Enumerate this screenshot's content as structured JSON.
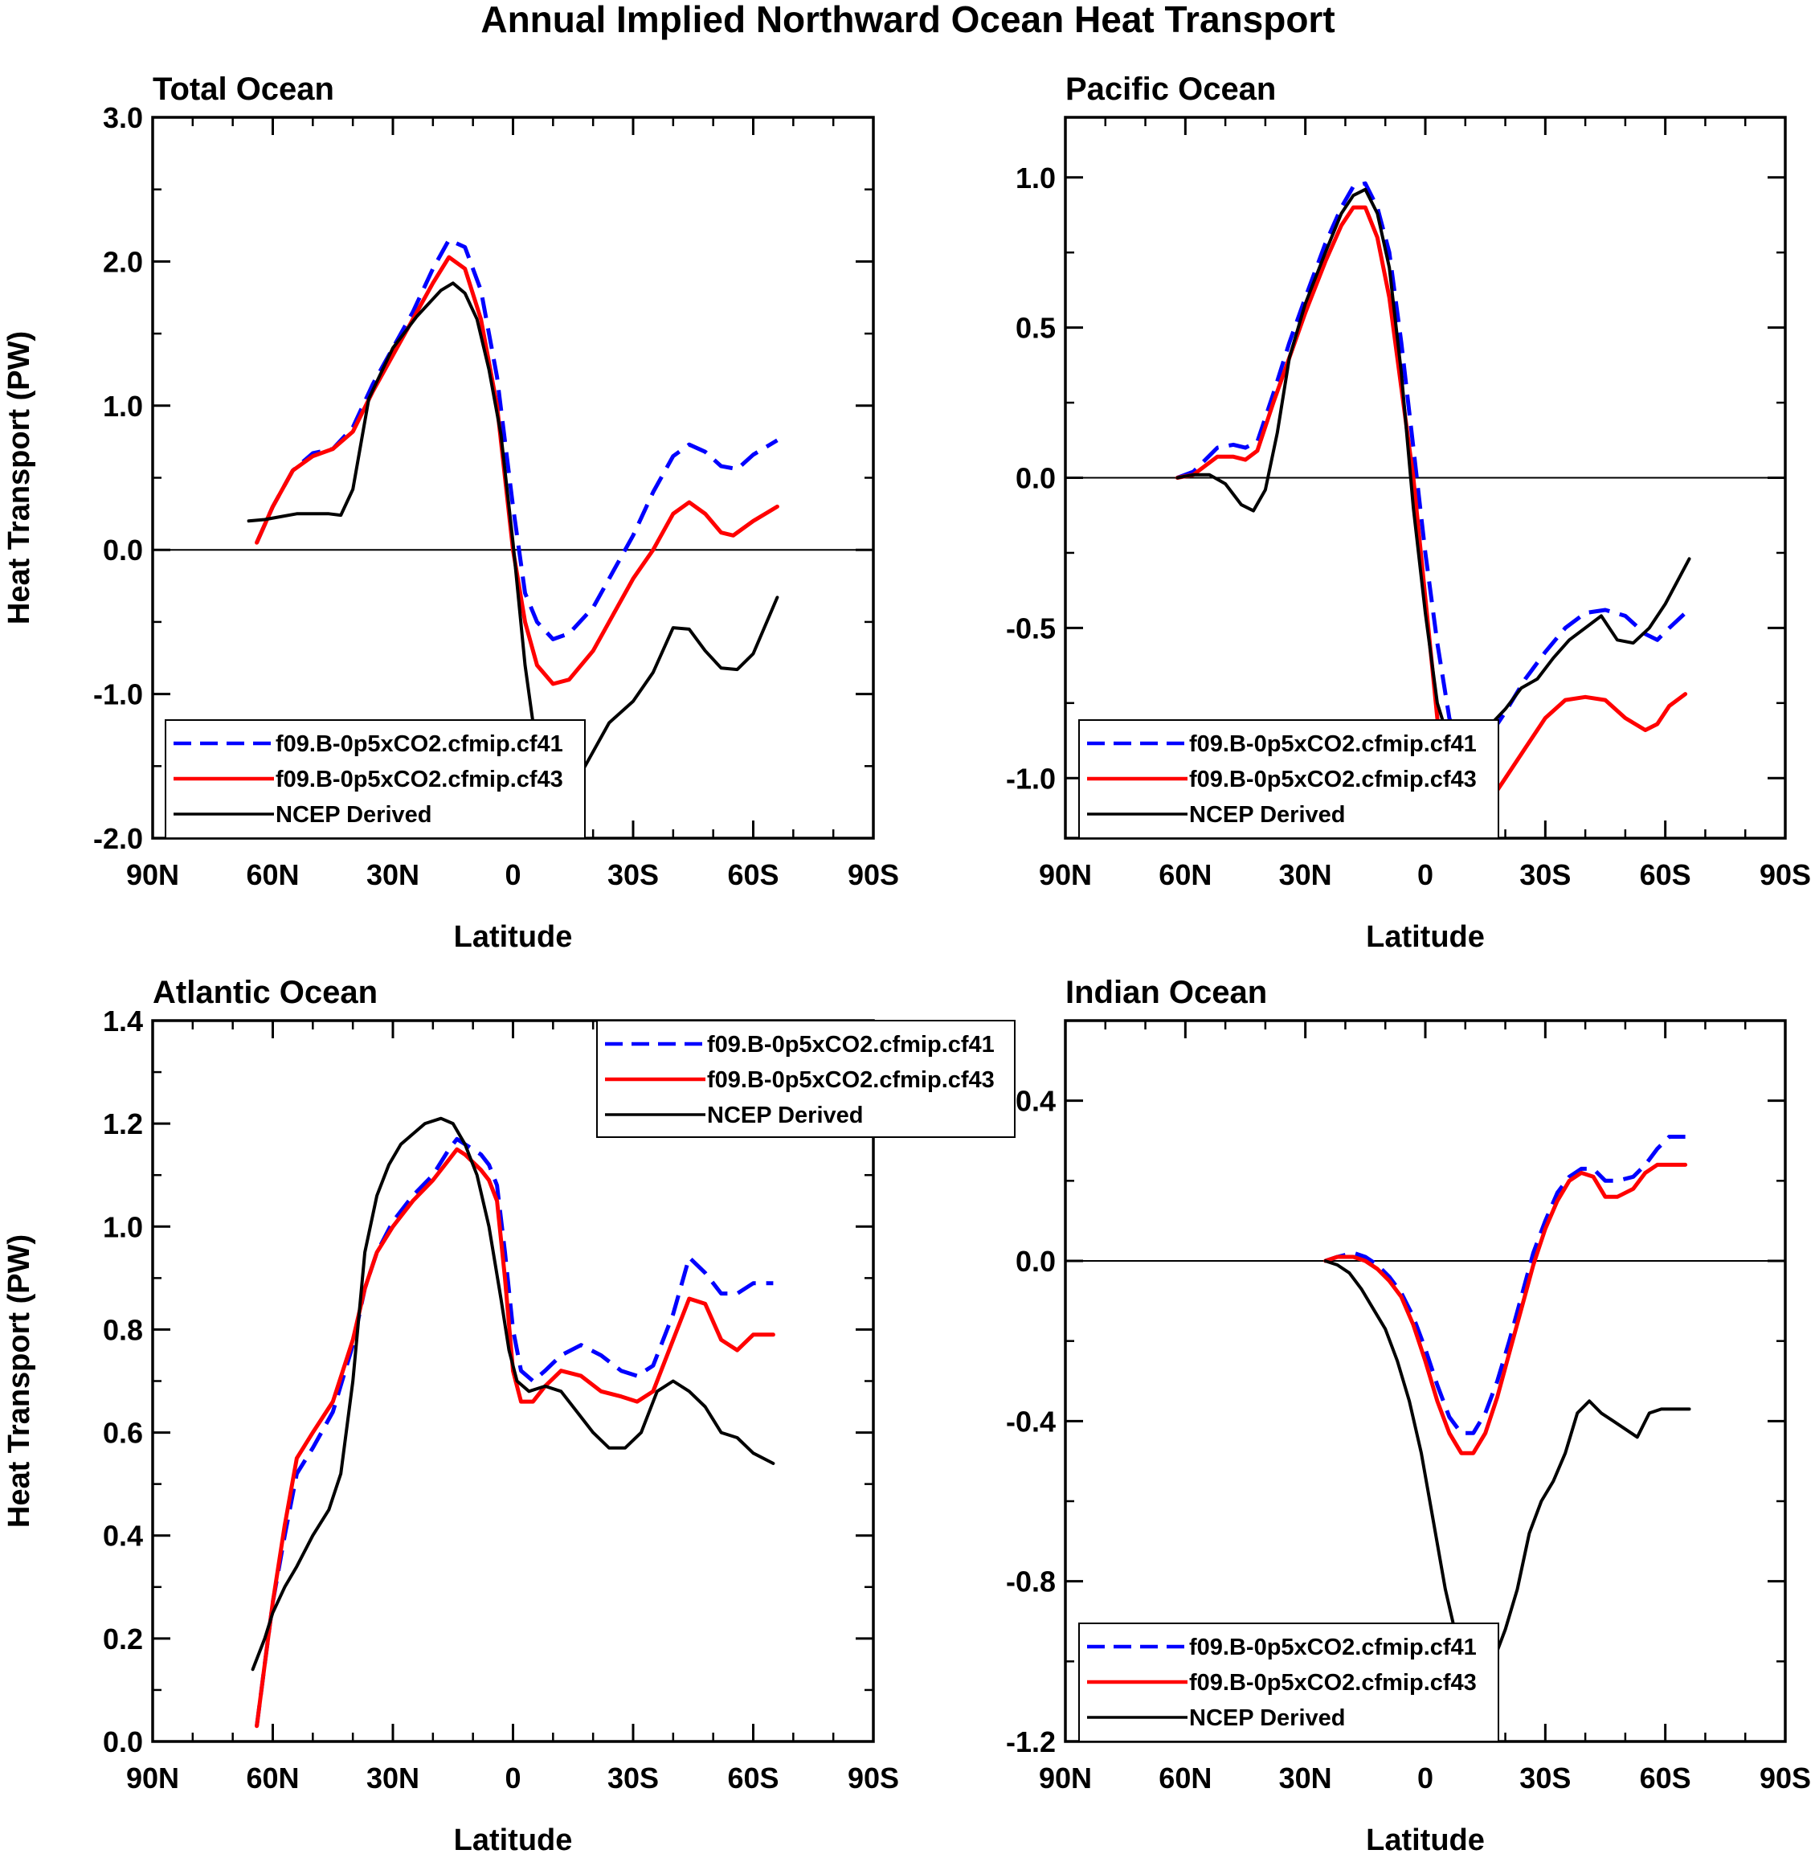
{
  "title": "Annual Implied Northward Ocean Heat Transport",
  "series_styles": [
    {
      "name": "f09.B-0p5xCO2.cfmip.cf41",
      "color": "#0000ff",
      "dash": "dashed"
    },
    {
      "name": "f09.B-0p5xCO2.cfmip.cf43",
      "color": "#ff0000",
      "dash": "solid"
    },
    {
      "name": "NCEP Derived",
      "color": "#000000",
      "dash": "solid"
    }
  ],
  "chart_data": [
    {
      "type": "line",
      "title": "Total Ocean",
      "xlabel": "Latitude",
      "ylabel": "Heat Transport (PW)",
      "xlim": [
        90,
        -90
      ],
      "ylim": [
        -2.0,
        3.0
      ],
      "xticks": [
        90,
        60,
        30,
        0,
        -30,
        -60,
        -90
      ],
      "xtick_labels": [
        "90N",
        "60N",
        "30N",
        "0",
        "30S",
        "60S",
        "90S"
      ],
      "yticks": [
        -2.0,
        -1.0,
        0.0,
        1.0,
        2.0,
        3.0
      ],
      "ytick_labels": [
        "-2.0",
        "-1.0",
        "0.0",
        "1.0",
        "2.0",
        "3.0"
      ],
      "zero_line": true,
      "legend_position": "bottom-left",
      "series": [
        {
          "name": "f09.B-0p5xCO2.cfmip.cf41",
          "x": [
            64,
            60,
            55,
            50,
            45,
            40,
            35,
            30,
            25,
            20,
            16,
            12,
            8,
            4,
            0,
            -3,
            -6,
            -10,
            -14,
            -20,
            -25,
            -30,
            -35,
            -40,
            -44,
            -48,
            -52,
            -56,
            -60,
            -66
          ],
          "y": [
            0.05,
            0.3,
            0.55,
            0.67,
            0.7,
            0.85,
            1.15,
            1.4,
            1.65,
            1.95,
            2.15,
            2.1,
            1.8,
            1.2,
            0.3,
            -0.3,
            -0.5,
            -0.62,
            -0.58,
            -0.4,
            -0.15,
            0.1,
            0.4,
            0.65,
            0.73,
            0.68,
            0.58,
            0.56,
            0.66,
            0.76
          ]
        },
        {
          "name": "f09.B-0p5xCO2.cfmip.cf43",
          "x": [
            64,
            60,
            55,
            50,
            45,
            40,
            35,
            30,
            25,
            20,
            16,
            12,
            8,
            4,
            0,
            -3,
            -6,
            -10,
            -14,
            -20,
            -25,
            -30,
            -35,
            -40,
            -44,
            -48,
            -52,
            -55,
            -60,
            -66
          ],
          "y": [
            0.05,
            0.3,
            0.55,
            0.65,
            0.7,
            0.82,
            1.1,
            1.35,
            1.6,
            1.85,
            2.03,
            1.95,
            1.6,
            1.0,
            0.0,
            -0.5,
            -0.8,
            -0.93,
            -0.9,
            -0.7,
            -0.45,
            -0.2,
            0.0,
            0.25,
            0.33,
            0.25,
            0.12,
            0.1,
            0.2,
            0.3
          ]
        },
        {
          "name": "NCEP Derived",
          "x": [
            66,
            62,
            58,
            54,
            50,
            46,
            43,
            40,
            36,
            30,
            24,
            18,
            15,
            12,
            9,
            6,
            3,
            0,
            -3,
            -6,
            -10,
            -14,
            -18,
            -24,
            -30,
            -35,
            -40,
            -44,
            -48,
            -52,
            -56,
            -60,
            -66
          ],
          "y": [
            0.2,
            0.21,
            0.23,
            0.25,
            0.25,
            0.25,
            0.24,
            0.42,
            1.05,
            1.4,
            1.62,
            1.8,
            1.85,
            1.78,
            1.6,
            1.25,
            0.8,
            0.05,
            -0.8,
            -1.4,
            -1.65,
            -1.67,
            -1.5,
            -1.2,
            -1.05,
            -0.85,
            -0.54,
            -0.55,
            -0.7,
            -0.82,
            -0.83,
            -0.72,
            -0.33
          ]
        }
      ]
    },
    {
      "type": "line",
      "title": "Pacific Ocean",
      "xlabel": "Latitude",
      "ylabel": "",
      "xlim": [
        90,
        -90
      ],
      "ylim": [
        -1.2,
        1.2
      ],
      "xticks": [
        90,
        60,
        30,
        0,
        -30,
        -60,
        -90
      ],
      "xtick_labels": [
        "90N",
        "60N",
        "30N",
        "0",
        "30S",
        "60S",
        "90S"
      ],
      "yticks": [
        -1.0,
        -0.5,
        0.0,
        0.5,
        1.0
      ],
      "ytick_labels": [
        "-1.0",
        "-0.5",
        "0.0",
        "0.5",
        "1.0"
      ],
      "zero_line": true,
      "legend_position": "bottom-left",
      "series": [
        {
          "name": "f09.B-0p5xCO2.cfmip.cf41",
          "x": [
            62,
            58,
            55,
            52,
            48,
            45,
            42,
            38,
            34,
            30,
            25,
            21,
            18,
            15,
            12,
            9,
            6,
            3,
            0,
            -3,
            -6,
            -9,
            -12,
            -15,
            -20,
            -25,
            -30,
            -35,
            -40,
            -45,
            -50,
            -55,
            -58,
            -61,
            -65
          ],
          "y": [
            0.0,
            0.02,
            0.06,
            0.1,
            0.11,
            0.1,
            0.12,
            0.28,
            0.45,
            0.6,
            0.78,
            0.9,
            0.97,
            0.98,
            0.9,
            0.75,
            0.45,
            0.1,
            -0.25,
            -0.55,
            -0.8,
            -0.92,
            -0.93,
            -0.88,
            -0.78,
            -0.67,
            -0.58,
            -0.5,
            -0.45,
            -0.44,
            -0.46,
            -0.52,
            -0.54,
            -0.5,
            -0.45
          ]
        },
        {
          "name": "f09.B-0p5xCO2.cfmip.cf43",
          "x": [
            62,
            58,
            55,
            52,
            48,
            45,
            42,
            38,
            34,
            30,
            25,
            21,
            18,
            15,
            12,
            9,
            6,
            3,
            0,
            -3,
            -6,
            -9,
            -12,
            -15,
            -20,
            -25,
            -30,
            -35,
            -40,
            -45,
            -50,
            -55,
            -58,
            -61,
            -65
          ],
          "y": [
            0.0,
            0.01,
            0.04,
            0.07,
            0.07,
            0.06,
            0.09,
            0.25,
            0.4,
            0.55,
            0.72,
            0.84,
            0.9,
            0.9,
            0.8,
            0.6,
            0.3,
            0.0,
            -0.4,
            -0.8,
            -1.05,
            -1.12,
            -1.13,
            -1.1,
            -1.0,
            -0.9,
            -0.8,
            -0.74,
            -0.73,
            -0.74,
            -0.8,
            -0.84,
            -0.82,
            -0.76,
            -0.72
          ]
        },
        {
          "name": "NCEP Derived",
          "x": [
            62,
            58,
            54,
            50,
            46,
            43,
            40,
            37,
            34,
            30,
            25,
            21,
            18,
            15,
            12,
            9,
            6,
            3,
            0,
            -3,
            -6,
            -9,
            -12,
            -15,
            -20,
            -24,
            -28,
            -32,
            -36,
            -40,
            -44,
            -48,
            -52,
            -56,
            -60,
            -66
          ],
          "y": [
            0.0,
            0.01,
            0.01,
            -0.02,
            -0.09,
            -0.11,
            -0.04,
            0.15,
            0.4,
            0.58,
            0.75,
            0.88,
            0.94,
            0.96,
            0.88,
            0.7,
            0.35,
            -0.1,
            -0.45,
            -0.75,
            -0.88,
            -0.9,
            -0.88,
            -0.84,
            -0.77,
            -0.7,
            -0.67,
            -0.6,
            -0.54,
            -0.5,
            -0.46,
            -0.54,
            -0.55,
            -0.5,
            -0.42,
            -0.27
          ]
        }
      ]
    },
    {
      "type": "line",
      "title": "Atlantic Ocean",
      "xlabel": "Latitude",
      "ylabel": "Heat Transport (PW)",
      "xlim": [
        90,
        -90
      ],
      "ylim": [
        0.0,
        1.4
      ],
      "xticks": [
        90,
        60,
        30,
        0,
        -30,
        -60,
        -90
      ],
      "xtick_labels": [
        "90N",
        "60N",
        "30N",
        "0",
        "30S",
        "60S",
        "90S"
      ],
      "yticks": [
        0.0,
        0.2,
        0.4,
        0.6,
        0.8,
        1.0,
        1.2,
        1.4
      ],
      "ytick_labels": [
        "0.0",
        "0.2",
        "0.4",
        "0.6",
        "0.8",
        "1.0",
        "1.2",
        "1.4"
      ],
      "zero_line": false,
      "legend_position": "top-right",
      "series": [
        {
          "name": "f09.B-0p5xCO2.cfmip.cf41",
          "x": [
            64,
            62,
            60,
            57,
            54,
            50,
            45,
            40,
            37,
            34,
            30,
            25,
            20,
            16,
            14,
            12,
            8,
            6,
            4,
            2,
            0,
            -2,
            -5,
            -8,
            -12,
            -17,
            -22,
            -27,
            -31,
            -35,
            -40,
            -44,
            -48,
            -52,
            -56,
            -60,
            -65
          ],
          "y": [
            0.03,
            0.15,
            0.27,
            0.4,
            0.52,
            0.57,
            0.64,
            0.77,
            0.88,
            0.95,
            1.01,
            1.06,
            1.1,
            1.15,
            1.17,
            1.16,
            1.14,
            1.12,
            1.08,
            0.95,
            0.8,
            0.72,
            0.7,
            0.72,
            0.75,
            0.77,
            0.75,
            0.72,
            0.71,
            0.73,
            0.83,
            0.94,
            0.91,
            0.87,
            0.87,
            0.89,
            0.89
          ]
        },
        {
          "name": "f09.B-0p5xCO2.cfmip.cf43",
          "x": [
            64,
            62,
            60,
            57,
            54,
            50,
            45,
            40,
            37,
            34,
            30,
            25,
            20,
            16,
            14,
            12,
            8,
            6,
            4,
            2,
            0,
            -2,
            -5,
            -8,
            -12,
            -17,
            -22,
            -27,
            -31,
            -35,
            -40,
            -44,
            -48,
            -52,
            -56,
            -60,
            -65
          ],
          "y": [
            0.03,
            0.15,
            0.27,
            0.42,
            0.55,
            0.6,
            0.66,
            0.78,
            0.88,
            0.95,
            1.0,
            1.05,
            1.09,
            1.13,
            1.15,
            1.14,
            1.11,
            1.09,
            1.05,
            0.9,
            0.72,
            0.66,
            0.66,
            0.69,
            0.72,
            0.71,
            0.68,
            0.67,
            0.66,
            0.68,
            0.78,
            0.86,
            0.85,
            0.78,
            0.76,
            0.79,
            0.79
          ]
        },
        {
          "name": "NCEP Derived",
          "x": [
            65,
            62,
            60,
            57,
            54,
            50,
            46,
            43,
            40,
            37,
            34,
            31,
            28,
            25,
            22,
            18,
            15,
            12,
            9,
            6,
            3,
            1,
            -1,
            -4,
            -8,
            -12,
            -16,
            -20,
            -24,
            -28,
            -32,
            -36,
            -40,
            -44,
            -48,
            -52,
            -56,
            -60,
            -65
          ],
          "y": [
            0.14,
            0.2,
            0.25,
            0.3,
            0.34,
            0.4,
            0.45,
            0.52,
            0.7,
            0.95,
            1.06,
            1.12,
            1.16,
            1.18,
            1.2,
            1.21,
            1.2,
            1.16,
            1.1,
            1.0,
            0.86,
            0.76,
            0.7,
            0.68,
            0.69,
            0.68,
            0.64,
            0.6,
            0.57,
            0.57,
            0.6,
            0.68,
            0.7,
            0.68,
            0.65,
            0.6,
            0.59,
            0.56,
            0.54
          ]
        }
      ]
    },
    {
      "type": "line",
      "title": "Indian Ocean",
      "xlabel": "Latitude",
      "ylabel": "",
      "xlim": [
        90,
        -90
      ],
      "ylim": [
        -1.2,
        0.6
      ],
      "xticks": [
        90,
        60,
        30,
        0,
        -30,
        -60,
        -90
      ],
      "xtick_labels": [
        "90N",
        "60N",
        "30N",
        "0",
        "30S",
        "60S",
        "90S"
      ],
      "yticks": [
        -1.2,
        -0.8,
        -0.4,
        0.0,
        0.4
      ],
      "ytick_labels": [
        "-1.2",
        "-0.8",
        "-0.4",
        "0.0",
        "0.4"
      ],
      "zero_line": true,
      "legend_position": "bottom-left",
      "series": [
        {
          "name": "f09.B-0p5xCO2.cfmip.cf41",
          "x": [
            25,
            22,
            18,
            15,
            12,
            9,
            6,
            3,
            0,
            -3,
            -6,
            -9,
            -12,
            -15,
            -18,
            -21,
            -24,
            -27,
            -30,
            -33,
            -36,
            -39,
            -42,
            -45,
            -48,
            -52,
            -55,
            -58,
            -61,
            -65
          ],
          "y": [
            0.0,
            0.01,
            0.02,
            0.01,
            -0.01,
            -0.04,
            -0.08,
            -0.14,
            -0.22,
            -0.31,
            -0.39,
            -0.43,
            -0.43,
            -0.38,
            -0.3,
            -0.2,
            -0.09,
            0.02,
            0.1,
            0.17,
            0.21,
            0.23,
            0.23,
            0.2,
            0.2,
            0.21,
            0.24,
            0.28,
            0.31,
            0.31
          ]
        },
        {
          "name": "f09.B-0p5xCO2.cfmip.cf43",
          "x": [
            25,
            22,
            18,
            15,
            12,
            9,
            6,
            3,
            0,
            -3,
            -6,
            -9,
            -12,
            -15,
            -18,
            -21,
            -24,
            -27,
            -30,
            -33,
            -36,
            -39,
            -42,
            -45,
            -48,
            -52,
            -55,
            -58,
            -61,
            -65
          ],
          "y": [
            0.0,
            0.01,
            0.01,
            0.0,
            -0.02,
            -0.05,
            -0.09,
            -0.16,
            -0.25,
            -0.35,
            -0.43,
            -0.48,
            -0.48,
            -0.43,
            -0.34,
            -0.23,
            -0.12,
            -0.01,
            0.08,
            0.15,
            0.2,
            0.22,
            0.21,
            0.16,
            0.16,
            0.18,
            0.22,
            0.24,
            0.24,
            0.24
          ]
        },
        {
          "name": "NCEP Derived",
          "x": [
            25,
            22,
            19,
            16,
            13,
            10,
            7,
            4,
            1,
            -2,
            -5,
            -8,
            -11,
            -14,
            -17,
            -20,
            -23,
            -26,
            -29,
            -32,
            -35,
            -38,
            -41,
            -44,
            -47,
            -50,
            -53,
            -56,
            -59,
            -62,
            -66
          ],
          "y": [
            0.0,
            -0.01,
            -0.03,
            -0.07,
            -0.12,
            -0.17,
            -0.25,
            -0.35,
            -0.48,
            -0.65,
            -0.82,
            -0.95,
            -1.03,
            -1.05,
            -1.0,
            -0.92,
            -0.82,
            -0.68,
            -0.6,
            -0.55,
            -0.48,
            -0.38,
            -0.35,
            -0.38,
            -0.4,
            -0.42,
            -0.44,
            -0.38,
            -0.37,
            -0.37,
            -0.37
          ]
        }
      ]
    }
  ]
}
